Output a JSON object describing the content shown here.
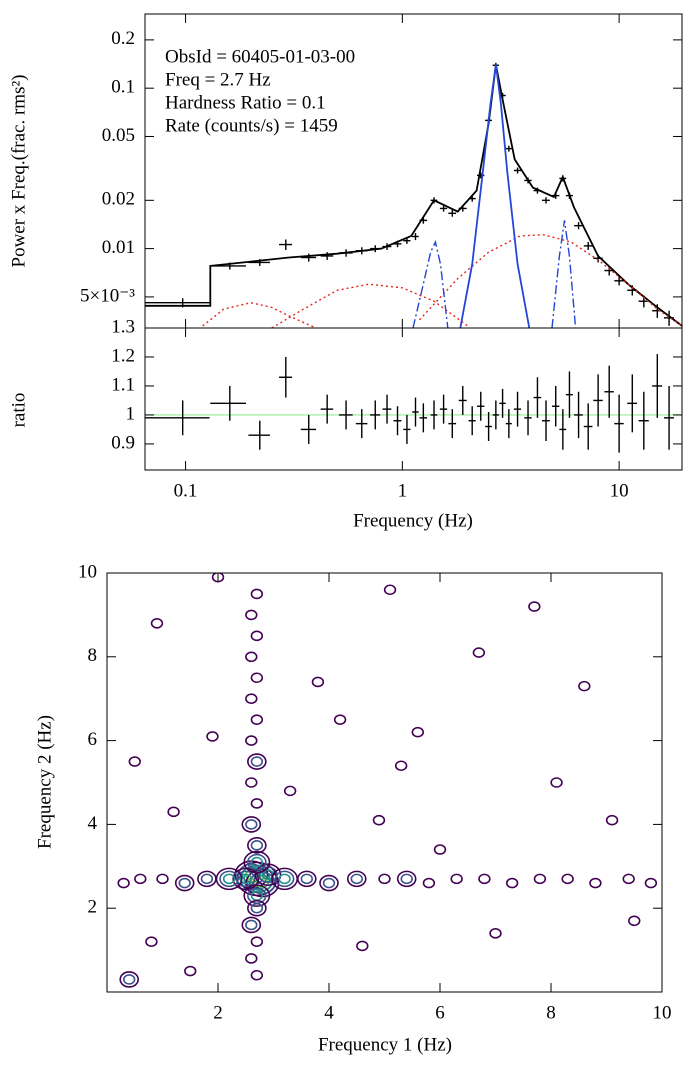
{
  "chart_data": [
    {
      "type": "errorbar",
      "ylabel": "Power x Freq.(frac. rms²)",
      "annotations": [
        "ObsId = 60405-01-03-00",
        "Freq = 2.7 Hz",
        "Hardness Ratio = 0.1",
        "Rate (counts/s) = 1459"
      ],
      "xscale": "log",
      "yscale": "log",
      "xlim": [
        0.065,
        19.5
      ],
      "ylim": [
        0.0032,
        0.29
      ],
      "xticks": [
        0.1,
        1,
        10
      ],
      "yticks": [
        0.2,
        0.1,
        0.05,
        0.02,
        0.01,
        {
          "value": 0.005,
          "label": "5×10⁻³"
        }
      ],
      "color": "#000000",
      "x": [
        0.097,
        0.16,
        0.22,
        0.29,
        0.37,
        0.45,
        0.55,
        0.65,
        0.75,
        0.85,
        0.95,
        1.05,
        1.15,
        1.25,
        1.4,
        1.55,
        1.7,
        1.9,
        2.1,
        2.3,
        2.5,
        2.7,
        2.9,
        3.1,
        3.4,
        3.8,
        4.2,
        4.6,
        5.1,
        5.5,
        5.9,
        6.5,
        7.2,
        8.0,
        9.0,
        10,
        11.5,
        13,
        15,
        17
      ],
      "xerr": [
        0.032,
        0.03,
        0.025,
        0.02,
        0.03,
        0.03,
        0.04,
        0.04,
        0.04,
        0.04,
        0.04,
        0.04,
        0.04,
        0.05,
        0.05,
        0.06,
        0.07,
        0.08,
        0.08,
        0.09,
        0.09,
        0.09,
        0.1,
        0.1,
        0.13,
        0.15,
        0.17,
        0.19,
        0.2,
        0.2,
        0.22,
        0.3,
        0.33,
        0.4,
        0.45,
        0.5,
        0.6,
        0.7,
        0.8,
        0.9
      ],
      "values": [
        0.0046,
        0.0078,
        0.0082,
        0.0106,
        0.0088,
        0.009,
        0.0094,
        0.0097,
        0.01,
        0.0103,
        0.0107,
        0.0112,
        0.0119,
        0.015,
        0.02,
        0.0178,
        0.0166,
        0.0178,
        0.0205,
        0.0286,
        0.063,
        0.139,
        0.09,
        0.042,
        0.0307,
        0.0266,
        0.023,
        0.02,
        0.0214,
        0.0274,
        0.0214,
        0.0139,
        0.0104,
        0.0087,
        0.0073,
        0.0063,
        0.0055,
        0.0047,
        0.0041,
        0.0037
      ],
      "yerr": [
        0.0003,
        0.0004,
        0.0004,
        0.0008,
        0.0005,
        0.0005,
        0.0005,
        0.0005,
        0.0005,
        0.0005,
        0.0005,
        0.0005,
        0.0006,
        0.0007,
        0.0009,
        0.0008,
        0.0008,
        0.0008,
        0.0009,
        0.0012,
        0.0025,
        0.005,
        0.0035,
        0.0018,
        0.0013,
        0.0011,
        0.001,
        0.0009,
        0.001,
        0.0012,
        0.001,
        0.0007,
        0.0006,
        0.0005,
        0.0005,
        0.0004,
        0.0004,
        0.0004,
        0.0004,
        0.0004
      ],
      "models": [
        {
          "color": "#000000",
          "dash": "solid",
          "x": [
            0.065,
            0.13,
            0.13,
            0.2,
            0.3,
            0.5,
            0.8,
            1.1,
            1.4,
            1.8,
            2.2,
            2.5,
            2.7,
            2.9,
            3.3,
            4,
            5,
            5.5,
            6.2,
            8,
            11,
            15,
            19.5
          ],
          "values": [
            0.0044,
            0.0044,
            0.0078,
            0.0083,
            0.0088,
            0.0093,
            0.01,
            0.012,
            0.02,
            0.017,
            0.023,
            0.06,
            0.14,
            0.085,
            0.036,
            0.024,
            0.021,
            0.028,
            0.018,
            0.009,
            0.006,
            0.0043,
            0.0033
          ]
        },
        {
          "color": "#e8231b",
          "dash": "dotted",
          "x": [
            0.12,
            0.15,
            0.2,
            0.25,
            0.3,
            0.4
          ],
          "values": [
            0.0033,
            0.0042,
            0.0046,
            0.0043,
            0.0038,
            0.0032
          ]
        },
        {
          "color": "#e8231b",
          "dash": "dotted",
          "x": [
            0.25,
            0.35,
            0.5,
            0.7,
            1.0,
            1.4,
            2.0
          ],
          "values": [
            0.0032,
            0.0042,
            0.0055,
            0.006,
            0.0057,
            0.0047,
            0.0033
          ]
        },
        {
          "color": "#e8231b",
          "dash": "dotted",
          "x": [
            1.2,
            1.8,
            2.5,
            3.5,
            4.5,
            6,
            8,
            11,
            15,
            19.5
          ],
          "values": [
            0.0036,
            0.0065,
            0.0095,
            0.012,
            0.0122,
            0.011,
            0.0085,
            0.006,
            0.0042,
            0.0033
          ]
        },
        {
          "color": "#2346d8",
          "dash": "solid",
          "x": [
            1.85,
            2.1,
            2.35,
            2.55,
            2.7,
            2.85,
            3.05,
            3.4,
            3.85
          ],
          "values": [
            0.0032,
            0.008,
            0.03,
            0.08,
            0.14,
            0.08,
            0.03,
            0.008,
            0.0032
          ]
        },
        {
          "color": "#2346d8",
          "dash": "dashdot",
          "x": [
            1.12,
            1.25,
            1.35,
            1.42,
            1.5,
            1.62
          ],
          "values": [
            0.0032,
            0.006,
            0.0095,
            0.011,
            0.008,
            0.0032
          ]
        },
        {
          "color": "#2346d8",
          "dash": "dashdot",
          "x": [
            4.9,
            5.3,
            5.6,
            5.9,
            6.3
          ],
          "values": [
            0.0032,
            0.009,
            0.015,
            0.009,
            0.0032
          ]
        }
      ]
    },
    {
      "type": "errorbar",
      "ylabel": "ratio",
      "xlabel": "Frequency (Hz)",
      "xscale": "log",
      "xlim": [
        0.065,
        19.5
      ],
      "ylim": [
        0.81,
        1.3
      ],
      "xticks": [
        0.1,
        1,
        10
      ],
      "yticks": [
        0.9,
        1,
        1.1,
        1.2,
        1.3
      ],
      "color": "#000000",
      "reference_line": {
        "value": 1,
        "color": "#90ee90"
      },
      "x": [
        0.097,
        0.16,
        0.22,
        0.29,
        0.37,
        0.45,
        0.55,
        0.65,
        0.75,
        0.85,
        0.95,
        1.05,
        1.15,
        1.25,
        1.4,
        1.55,
        1.7,
        1.9,
        2.1,
        2.3,
        2.5,
        2.7,
        2.9,
        3.1,
        3.4,
        3.8,
        4.2,
        4.6,
        5.1,
        5.5,
        5.9,
        6.5,
        7.2,
        8.0,
        9.0,
        10,
        11.5,
        13,
        15,
        17
      ],
      "xerr": [
        0.032,
        0.03,
        0.025,
        0.02,
        0.03,
        0.03,
        0.04,
        0.04,
        0.04,
        0.04,
        0.04,
        0.04,
        0.04,
        0.05,
        0.05,
        0.06,
        0.07,
        0.08,
        0.08,
        0.09,
        0.09,
        0.09,
        0.1,
        0.1,
        0.13,
        0.15,
        0.17,
        0.19,
        0.2,
        0.2,
        0.22,
        0.3,
        0.33,
        0.4,
        0.45,
        0.5,
        0.6,
        0.7,
        0.8,
        0.9
      ],
      "values": [
        0.99,
        1.04,
        0.93,
        1.13,
        0.95,
        1.02,
        1.0,
        0.97,
        1.0,
        1.02,
        0.98,
        0.95,
        1.01,
        0.99,
        1.0,
        1.02,
        0.97,
        1.05,
        0.98,
        1.03,
        0.96,
        1.0,
        1.04,
        0.97,
        1.02,
        0.99,
        1.06,
        0.98,
        1.03,
        0.95,
        1.07,
        1.0,
        0.96,
        1.05,
        1.08,
        0.97,
        1.04,
        0.98,
        1.1,
        0.99
      ],
      "yerr": [
        0.06,
        0.06,
        0.05,
        0.07,
        0.05,
        0.05,
        0.05,
        0.05,
        0.05,
        0.05,
        0.05,
        0.05,
        0.05,
        0.05,
        0.05,
        0.05,
        0.05,
        0.05,
        0.05,
        0.05,
        0.05,
        0.05,
        0.05,
        0.05,
        0.06,
        0.06,
        0.07,
        0.07,
        0.07,
        0.07,
        0.08,
        0.08,
        0.08,
        0.09,
        0.09,
        0.1,
        0.1,
        0.1,
        0.11,
        0.11
      ]
    },
    {
      "type": "contour",
      "xlabel": "Frequency 1 (Hz)",
      "ylabel": "Frequency 2 (Hz)",
      "xlim": [
        0,
        10
      ],
      "ylim": [
        0,
        10
      ],
      "xticks": [
        2,
        4,
        6,
        8,
        10
      ],
      "yticks": [
        2,
        4,
        6,
        8,
        10
      ],
      "level_colors": [
        "#440154",
        "#3b528b",
        "#21918c",
        "#5ec962",
        "#fde725"
      ],
      "x": [
        2.7,
        2.6,
        2.8,
        2.5,
        2.9,
        2.7,
        2.7,
        2.7,
        2.6,
        2.7,
        2.6,
        2.7,
        2.7,
        2.6,
        2.7,
        2.6,
        2.7,
        2.6,
        2.7,
        2.6,
        2.7,
        2.6,
        2.7,
        2.6,
        2.7,
        2.2,
        1.8,
        1.4,
        1.0,
        0.6,
        0.3,
        3.2,
        3.6,
        4.0,
        4.5,
        5.0,
        5.4,
        5.8,
        6.3,
        6.8,
        7.3,
        7.8,
        8.3,
        8.8,
        9.4,
        9.8,
        0.8,
        1.5,
        0.4,
        1.2,
        4.2,
        5.3,
        5.6,
        3.8,
        6.7,
        8.1,
        9.1,
        7.0,
        4.6,
        0.9,
        5.1,
        7.7,
        3.3,
        1.9,
        4.9,
        8.6,
        6.0,
        0.5,
        2.0,
        9.5
      ],
      "y": [
        2.7,
        2.8,
        2.6,
        2.7,
        2.8,
        3.1,
        2.3,
        2.0,
        1.6,
        1.2,
        0.8,
        0.4,
        3.5,
        4.0,
        4.5,
        5.0,
        5.5,
        6.0,
        6.5,
        7.0,
        7.5,
        8.0,
        8.5,
        9.0,
        9.5,
        2.7,
        2.7,
        2.6,
        2.7,
        2.7,
        2.6,
        2.7,
        2.7,
        2.6,
        2.7,
        2.7,
        2.7,
        2.6,
        2.7,
        2.7,
        2.6,
        2.7,
        2.7,
        2.6,
        2.7,
        2.6,
        1.2,
        0.5,
        0.3,
        4.3,
        6.5,
        5.4,
        6.2,
        7.4,
        8.1,
        5.0,
        4.1,
        1.4,
        1.1,
        8.8,
        9.6,
        9.2,
        4.8,
        6.1,
        4.1,
        7.3,
        3.4,
        5.5,
        9.9,
        1.7
      ],
      "values": [
        5,
        4,
        4,
        3,
        3,
        3,
        3,
        2,
        2,
        1,
        1,
        1,
        2,
        2,
        1,
        1,
        2,
        1,
        1,
        1,
        1,
        1,
        1,
        1,
        1,
        3,
        2,
        2,
        1,
        1,
        1,
        3,
        2,
        2,
        2,
        1,
        2,
        1,
        1,
        1,
        1,
        1,
        1,
        1,
        1,
        1,
        1,
        1,
        2,
        1,
        1,
        1,
        1,
        1,
        1,
        1,
        1,
        1,
        1,
        1,
        1,
        1,
        1,
        1,
        1,
        1,
        1,
        1,
        1,
        1
      ]
    }
  ]
}
